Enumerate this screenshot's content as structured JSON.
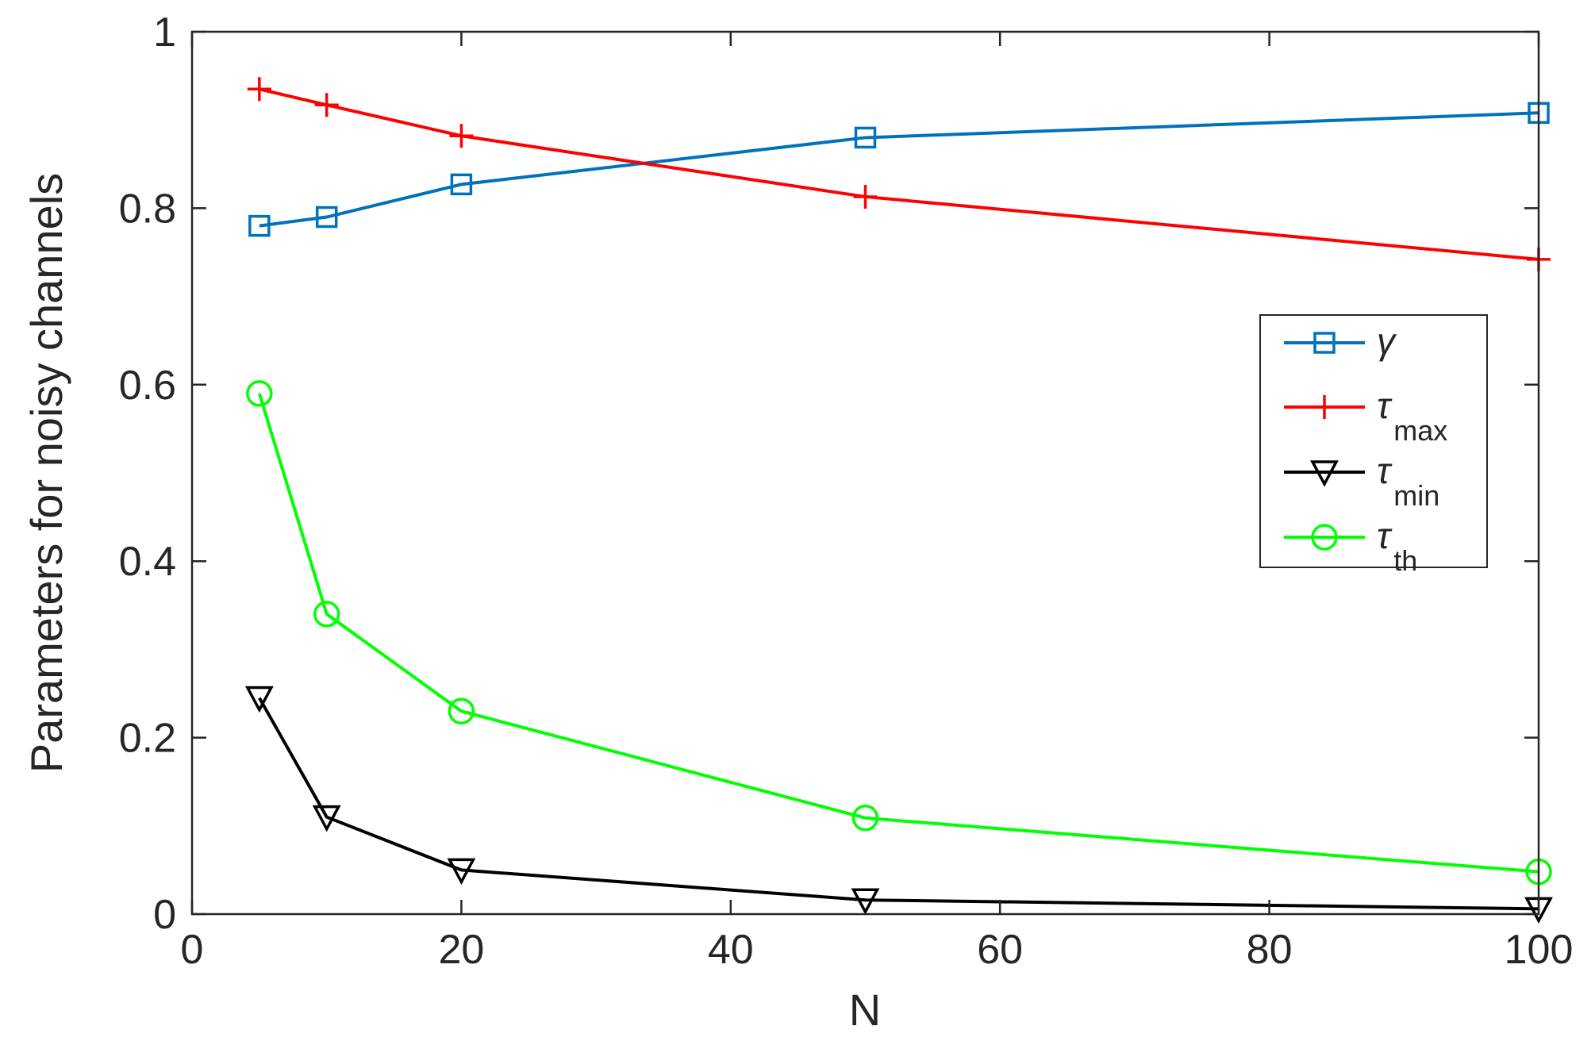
{
  "chart_data": {
    "type": "line",
    "title": "",
    "xlabel": "N",
    "ylabel": "Parameters for noisy channels",
    "xlim": [
      0,
      100
    ],
    "ylim": [
      0,
      1
    ],
    "x_ticks": [
      "0",
      "20",
      "40",
      "60",
      "80",
      "100"
    ],
    "y_ticks": [
      "0",
      "0.2",
      "0.4",
      "0.6",
      "0.8",
      "1"
    ],
    "x": [
      5,
      10,
      20,
      50,
      100
    ],
    "grid": false,
    "legend_position": "right",
    "series": [
      {
        "name": "γ",
        "subscript": "",
        "color": "#0072bd",
        "marker": "square",
        "values": [
          0.78,
          0.79,
          0.827,
          0.88,
          0.908
        ]
      },
      {
        "name": "τ",
        "subscript": "max",
        "color": "#ff0000",
        "marker": "plus",
        "values": [
          0.935,
          0.917,
          0.882,
          0.813,
          0.742
        ]
      },
      {
        "name": "τ",
        "subscript": "min",
        "color": "#000000",
        "marker": "triangle-down",
        "values": [
          0.245,
          0.11,
          0.05,
          0.016,
          0.006
        ]
      },
      {
        "name": "τ",
        "subscript": "th",
        "color": "#00ff00",
        "marker": "circle",
        "values": [
          0.59,
          0.34,
          0.23,
          0.109,
          0.048
        ]
      }
    ]
  }
}
